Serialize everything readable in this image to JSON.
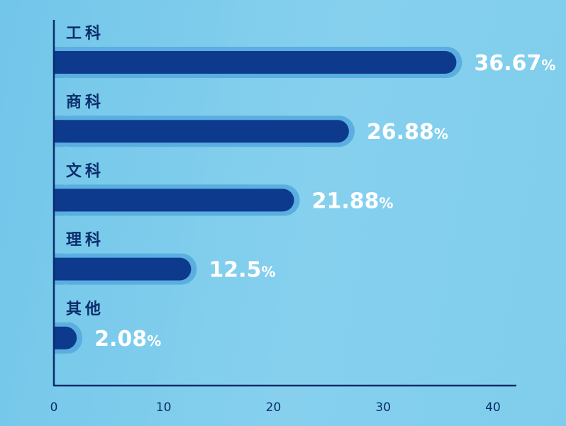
{
  "chart_data": {
    "type": "bar",
    "orientation": "horizontal",
    "categories": [
      "工科",
      "商科",
      "文科",
      "理科",
      "其他"
    ],
    "values": [
      36.67,
      26.88,
      21.88,
      12.5,
      2.08
    ],
    "value_labels": [
      "36.67",
      "26.88",
      "21.88",
      "12.5",
      "2.08"
    ],
    "value_suffix": "%",
    "x_ticks": [
      "0",
      "10",
      "20",
      "30",
      "40"
    ],
    "xlim": [
      0,
      40
    ],
    "grid": false,
    "colors": {
      "bar": "#0d3a8c",
      "bar_shadow": "#5aaee0",
      "axis": "#0b2d6b",
      "value_text": "#ffffff",
      "label_text": "#0b2d6b"
    }
  }
}
